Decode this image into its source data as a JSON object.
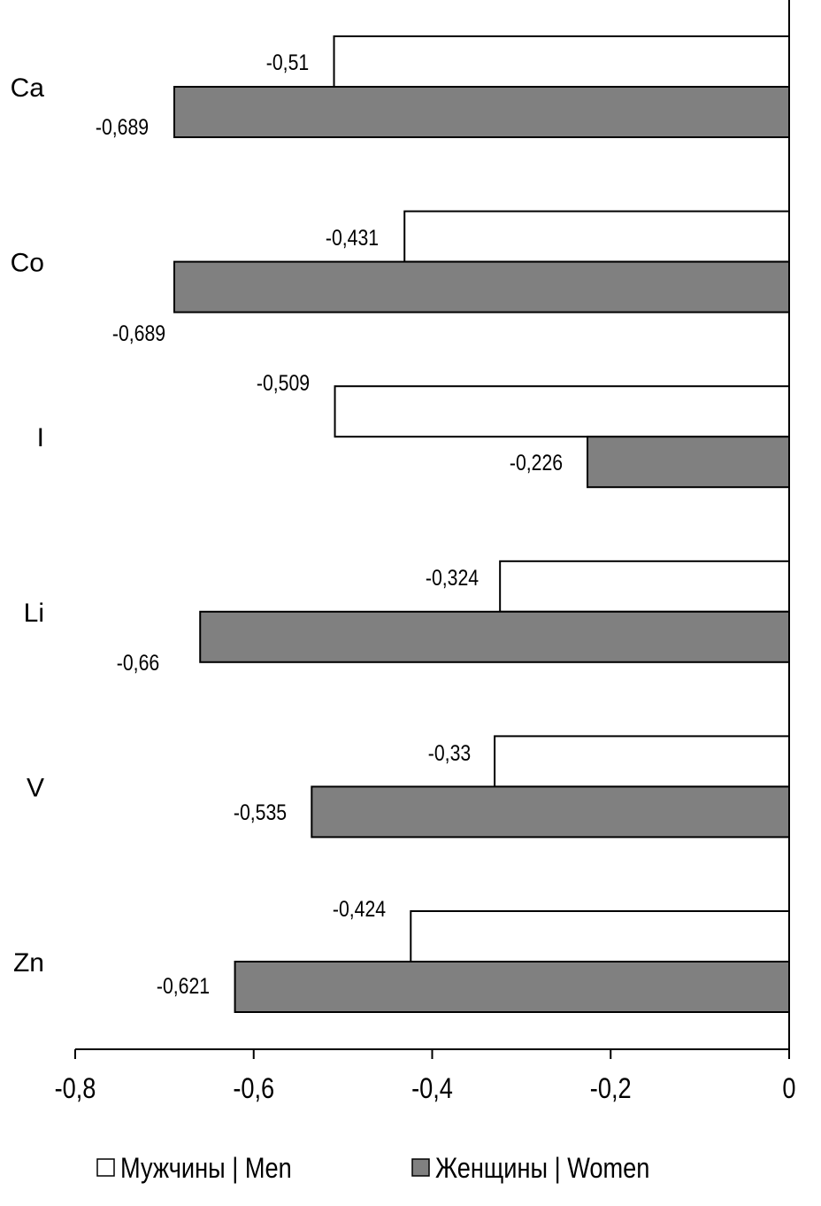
{
  "chart_data": {
    "type": "bar",
    "orientation": "horizontal",
    "title": "",
    "xlabel": "",
    "ylabel": "",
    "categories": [
      "Ca",
      "Co",
      "I",
      "Li",
      "V",
      "Zn"
    ],
    "series": [
      {
        "name": "Мужчины | Men",
        "color": "#ffffff",
        "values": [
          -0.51,
          -0.431,
          -0.509,
          -0.324,
          -0.33,
          -0.424
        ],
        "labels": [
          "-0,51",
          "-0,431",
          "-0,509",
          "-0,324",
          "-0,33",
          "-0,424"
        ]
      },
      {
        "name": "Женщины | Women",
        "color": "#808080",
        "values": [
          -0.689,
          -0.689,
          -0.226,
          -0.66,
          -0.535,
          -0.621
        ],
        "labels": [
          "-0,689",
          "-0,689",
          "-0,226",
          "-0,66",
          "-0,535",
          "-0,621"
        ]
      }
    ],
    "xlim": [
      -0.8,
      0
    ],
    "xticks": [
      -0.8,
      -0.6,
      -0.4,
      -0.2,
      0
    ],
    "xtick_labels": [
      "-0,8",
      "-0,6",
      "-0,4",
      "-0,2",
      "0"
    ],
    "grid": false,
    "legend_position": "bottom"
  }
}
